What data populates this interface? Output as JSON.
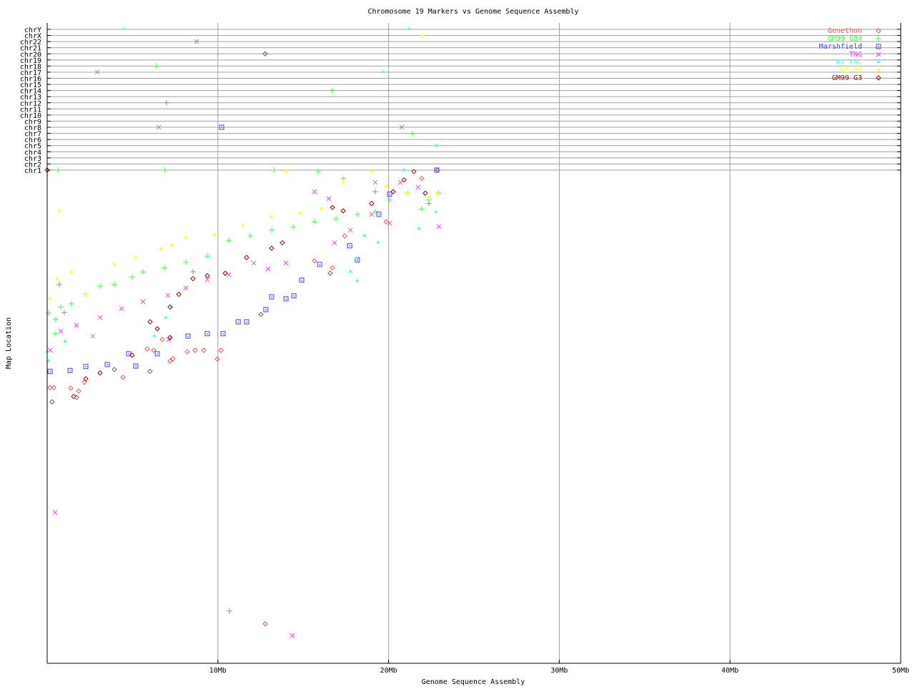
{
  "chart_data": {
    "type": "scatter",
    "title": "Chromosome 19 Markers vs Genome Sequence Assembly",
    "xlabel": "Genome Sequence Assembly",
    "ylabel": "Map Location",
    "xlim": [
      0,
      50
    ],
    "x_ticks": [
      {
        "value": 10,
        "label": "10Mb"
      },
      {
        "value": 20,
        "label": "20Mb"
      },
      {
        "value": 30,
        "label": "30Mb"
      },
      {
        "value": 40,
        "label": "40Mb"
      },
      {
        "value": 50,
        "label": "50Mb"
      }
    ],
    "chromosomes": [
      "chrY",
      "chrX",
      "chr22",
      "chr21",
      "chr20",
      "chr19",
      "chr18",
      "chr17",
      "chr16",
      "chr15",
      "chr14",
      "chr13",
      "chr12",
      "chr11",
      "chr10",
      "chr9",
      "chr8",
      "chr7",
      "chr6",
      "chr5",
      "chr4",
      "chr3",
      "chr2",
      "chr1"
    ],
    "ylim": [
      0,
      100
    ],
    "grid": true,
    "legend": "top-right",
    "series": [
      {
        "name": "Genethon",
        "color": "#ff5050",
        "marker": "diamond",
        "points": [
          [
            0.17,
            44.3
          ],
          [
            0.38,
            44.3
          ],
          [
            1.38,
            44.4
          ],
          [
            1.84,
            45.0
          ],
          [
            2.18,
            43.2
          ],
          [
            4.44,
            42.2
          ],
          [
            5.86,
            36.4
          ],
          [
            6.24,
            36.7
          ],
          [
            6.74,
            34.5
          ],
          [
            7.2,
            38.9
          ],
          [
            7.37,
            38.4
          ],
          [
            8.21,
            37.0
          ],
          [
            8.67,
            36.7
          ],
          [
            9.17,
            36.7
          ],
          [
            10.18,
            36.7
          ],
          [
            9.97,
            38.5
          ],
          [
            12.77,
            92.4
          ],
          [
            15.66,
            18.5
          ],
          [
            16.71,
            19.9
          ],
          [
            17.42,
            13.4
          ],
          [
            19.85,
            10.5
          ],
          [
            21.94,
            1.7
          ],
          [
            22.86,
            0
          ]
        ]
      },
      {
        "name": "GM99 GB4",
        "color": "#40ff40",
        "marker": "plus",
        "points": [
          [
            0.08,
            29.1
          ],
          [
            0.5,
            30.4
          ],
          [
            0.5,
            33.3
          ],
          [
            0.8,
            27.9
          ],
          [
            1.42,
            27.2
          ],
          [
            2.26,
            25.3
          ],
          [
            3.1,
            23.6
          ],
          [
            3.94,
            23.3
          ],
          [
            4.98,
            21.8
          ],
          [
            5.61,
            20.7
          ],
          [
            6.87,
            19.9
          ],
          [
            8.12,
            18.8
          ],
          [
            9.38,
            17.5
          ],
          [
            10.64,
            14.3
          ],
          [
            11.89,
            13.4
          ],
          [
            13.15,
            12.2
          ],
          [
            14.41,
            11.6
          ],
          [
            15.66,
            10.5
          ],
          [
            16.92,
            9.9
          ],
          [
            18.17,
            9.0
          ],
          [
            19.22,
            8.4
          ],
          [
            20.06,
            6.1
          ],
          [
            21.11,
            4.7
          ],
          [
            22.36,
            6.1
          ],
          [
            22.91,
            4.7
          ],
          [
            15.87,
            0.3
          ],
          [
            17.34,
            1.7
          ],
          [
            21.94,
            7.9
          ],
          [
            0.63,
            "chr1"
          ],
          [
            6.9,
            "chr1"
          ],
          [
            13.3,
            "chr1"
          ],
          [
            21.4,
            "chr7"
          ],
          [
            16.7,
            "chr14"
          ],
          [
            6.4,
            "chr18"
          ]
        ]
      },
      {
        "name": "Marshfield",
        "color": "#4040ff",
        "marker": "square",
        "points": [
          [
            0.17,
            41.0
          ],
          [
            1.34,
            40.8
          ],
          [
            2.26,
            40.0
          ],
          [
            3.52,
            39.6
          ],
          [
            4.77,
            37.4
          ],
          [
            5.19,
            39.9
          ],
          [
            6.45,
            37.4
          ],
          [
            8.25,
            33.8
          ],
          [
            9.38,
            33.3
          ],
          [
            10.3,
            33.3
          ],
          [
            11.19,
            30.9
          ],
          [
            11.68,
            30.9
          ],
          [
            12.81,
            28.4
          ],
          [
            13.15,
            25.8
          ],
          [
            13.99,
            26.2
          ],
          [
            14.45,
            25.6
          ],
          [
            14.91,
            22.4
          ],
          [
            15.96,
            19.2
          ],
          [
            17.72,
            15.4
          ],
          [
            18.17,
            18.3
          ],
          [
            19.43,
            9.0
          ],
          [
            20.06,
            4.9
          ],
          [
            22.82,
            0
          ],
          [
            10.22,
            "chr8"
          ]
        ]
      },
      {
        "name": "TNG",
        "color": "#ff40ff",
        "marker": "cross",
        "points": [
          [
            0.46,
            69.7
          ],
          [
            0.17,
            36.7
          ],
          [
            0.8,
            32.8
          ],
          [
            1.72,
            31.6
          ],
          [
            3.1,
            30.0
          ],
          [
            4.36,
            28.2
          ],
          [
            5.61,
            26.8
          ],
          [
            7.07,
            25.5
          ],
          [
            7.12,
            34.5
          ],
          [
            8.12,
            24.0
          ],
          [
            9.38,
            22.3
          ],
          [
            10.64,
            21.3
          ],
          [
            12.94,
            20.1
          ],
          [
            13.99,
            18.9
          ],
          [
            15.66,
            4.4
          ],
          [
            16.5,
            5.8
          ],
          [
            16.83,
            14.8
          ],
          [
            17.76,
            12.2
          ],
          [
            19.01,
            9.0
          ],
          [
            20.06,
            10.8
          ],
          [
            20.69,
            2.5
          ],
          [
            21.73,
            3.5
          ],
          [
            22.95,
            11.5
          ],
          [
            14.36,
            94.8
          ]
        ]
      },
      {
        "name": "WI YAC",
        "color": "#40ffff",
        "marker": "triangle",
        "points": [
          [
            0,
            37.0
          ],
          [
            0.08,
            38.9
          ],
          [
            1.05,
            34.9
          ],
          [
            6.95,
            30.1
          ],
          [
            6.28,
            33.8
          ],
          [
            7.29,
            27.9
          ],
          [
            18.09,
            18.0
          ],
          [
            17.76,
            20.7
          ],
          [
            18.17,
            22.6
          ],
          [
            18.59,
            13.4
          ],
          [
            19.39,
            14.8
          ],
          [
            21.78,
            11.9
          ],
          [
            22.78,
            8.6
          ],
          [
            20.9,
            0
          ],
          [
            4.52,
            "chrY"
          ],
          [
            21.2,
            "chrY"
          ],
          [
            19.7,
            "chr17"
          ],
          [
            22.8,
            "chr5"
          ]
        ]
      },
      {
        "name": "WI RH",
        "color": "#ffff40",
        "marker": "star",
        "points": [
          [
            0.17,
            26.1
          ],
          [
            0.59,
            22.1
          ],
          [
            0.71,
            8.3
          ],
          [
            1.42,
            20.7
          ],
          [
            2.26,
            25.3
          ],
          [
            3.94,
            19.2
          ],
          [
            5.19,
            17.8
          ],
          [
            6.66,
            16.0
          ],
          [
            7.29,
            15.3
          ],
          [
            8.12,
            13.8
          ],
          [
            9.8,
            13.1
          ],
          [
            11.47,
            11.2
          ],
          [
            13.15,
            9.5
          ],
          [
            14.82,
            8.7
          ],
          [
            16.08,
            7.9
          ],
          [
            17.34,
            2.5
          ],
          [
            19.01,
            0.3
          ],
          [
            19.85,
            3.2
          ],
          [
            21.11,
            4.7
          ],
          [
            22.36,
            5.4
          ],
          [
            22.82,
            4.7
          ],
          [
            13.99,
            0.3
          ],
          [
            22.0,
            "chrX"
          ]
        ]
      },
      {
        "name": "GM99 G3",
        "color": "#a00000",
        "marker": "diamond",
        "points": [
          [
            0,
            "chr1"
          ],
          [
            1.55,
            46.1
          ],
          [
            2.26,
            42.5
          ],
          [
            3.1,
            41.3
          ],
          [
            4.98,
            37.7
          ],
          [
            6.03,
            30.9
          ],
          [
            6.45,
            32.3
          ],
          [
            7.2,
            34.1
          ],
          [
            7.2,
            27.9
          ],
          [
            7.71,
            25.3
          ],
          [
            8.54,
            22.1
          ],
          [
            9.38,
            21.5
          ],
          [
            10.43,
            21.0
          ],
          [
            11.68,
            17.8
          ],
          [
            13.15,
            15.9
          ],
          [
            13.78,
            14.8
          ],
          [
            16.71,
            7.6
          ],
          [
            17.34,
            8.3
          ],
          [
            19.01,
            6.8
          ],
          [
            20.27,
            4.4
          ],
          [
            20.9,
            2.0
          ],
          [
            22.15,
            4.7
          ],
          [
            21.48,
            0.3
          ]
        ]
      },
      {
        "color": "#909090",
        "marker": "cross",
        "points": [
          [
            8.75,
            "chr22"
          ],
          [
            2.93,
            "chr17"
          ],
          [
            6.53,
            "chr8"
          ],
          [
            20.77,
            "chr8"
          ],
          [
            2.68,
            33.8
          ],
          [
            12.1,
            18.9
          ],
          [
            19.22,
            2.5
          ]
        ]
      },
      {
        "color": "#909090",
        "marker": "plus",
        "points": [
          [
            6.99,
            "chr12"
          ],
          [
            10.68,
            89.8
          ],
          [
            1.0,
            29.0
          ],
          [
            0.71,
            23.3
          ],
          [
            8.54,
            20.7
          ],
          [
            19.22,
            4.4
          ],
          [
            22.36,
            6.8
          ]
        ]
      },
      {
        "color": "#606060",
        "marker": "diamond",
        "points": [
          [
            12.77,
            "chr20"
          ],
          [
            0.29,
            47.2
          ],
          [
            1.72,
            46.3
          ],
          [
            3.94,
            40.6
          ],
          [
            6.03,
            41.0
          ],
          [
            12.52,
            29.4
          ],
          [
            16.58,
            21.0
          ]
        ]
      }
    ]
  }
}
